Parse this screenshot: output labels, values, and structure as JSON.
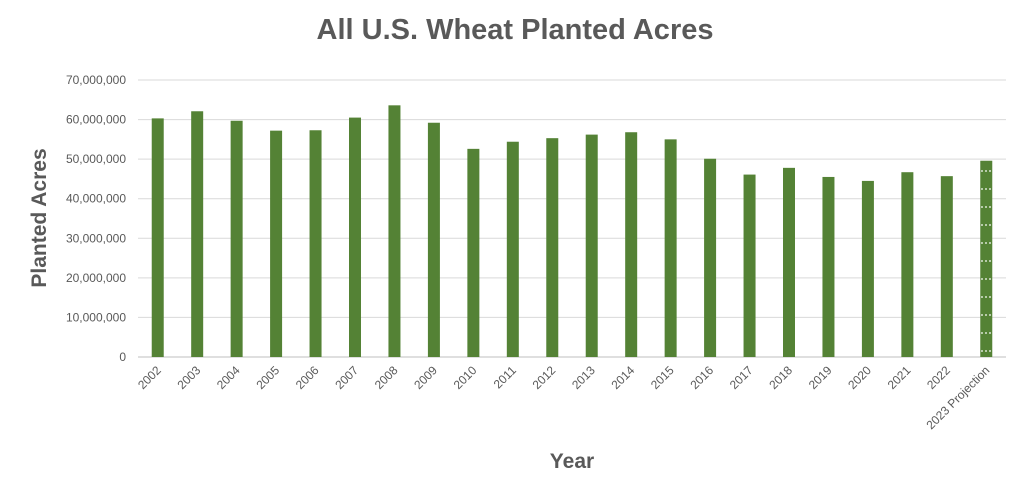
{
  "chart_data": {
    "type": "bar",
    "title": "All U.S. Wheat Planted Acres",
    "xlabel": "Year",
    "ylabel": "Planted Acres",
    "categories": [
      "2002",
      "2003",
      "2004",
      "2005",
      "2006",
      "2007",
      "2008",
      "2009",
      "2010",
      "2011",
      "2012",
      "2013",
      "2014",
      "2015",
      "2016",
      "2017",
      "2018",
      "2019",
      "2020",
      "2021",
      "2022",
      "2023 Projection"
    ],
    "values": [
      60300000,
      62100000,
      59700000,
      57200000,
      57300000,
      60500000,
      63600000,
      59200000,
      52600000,
      54400000,
      55300000,
      56200000,
      56800000,
      55000000,
      50100000,
      46100000,
      47800000,
      45500000,
      44500000,
      46700000,
      45700000,
      49600000
    ],
    "ylim": [
      0,
      70000000
    ],
    "yticks": [
      "0",
      "10,000,000",
      "20,000,000",
      "30,000,000",
      "40,000,000",
      "50,000,000",
      "60,000,000",
      "70,000,000"
    ],
    "grid": true,
    "colors": {
      "bar": "#548235",
      "grid": "#d9d9d9",
      "text": "#595959"
    }
  }
}
